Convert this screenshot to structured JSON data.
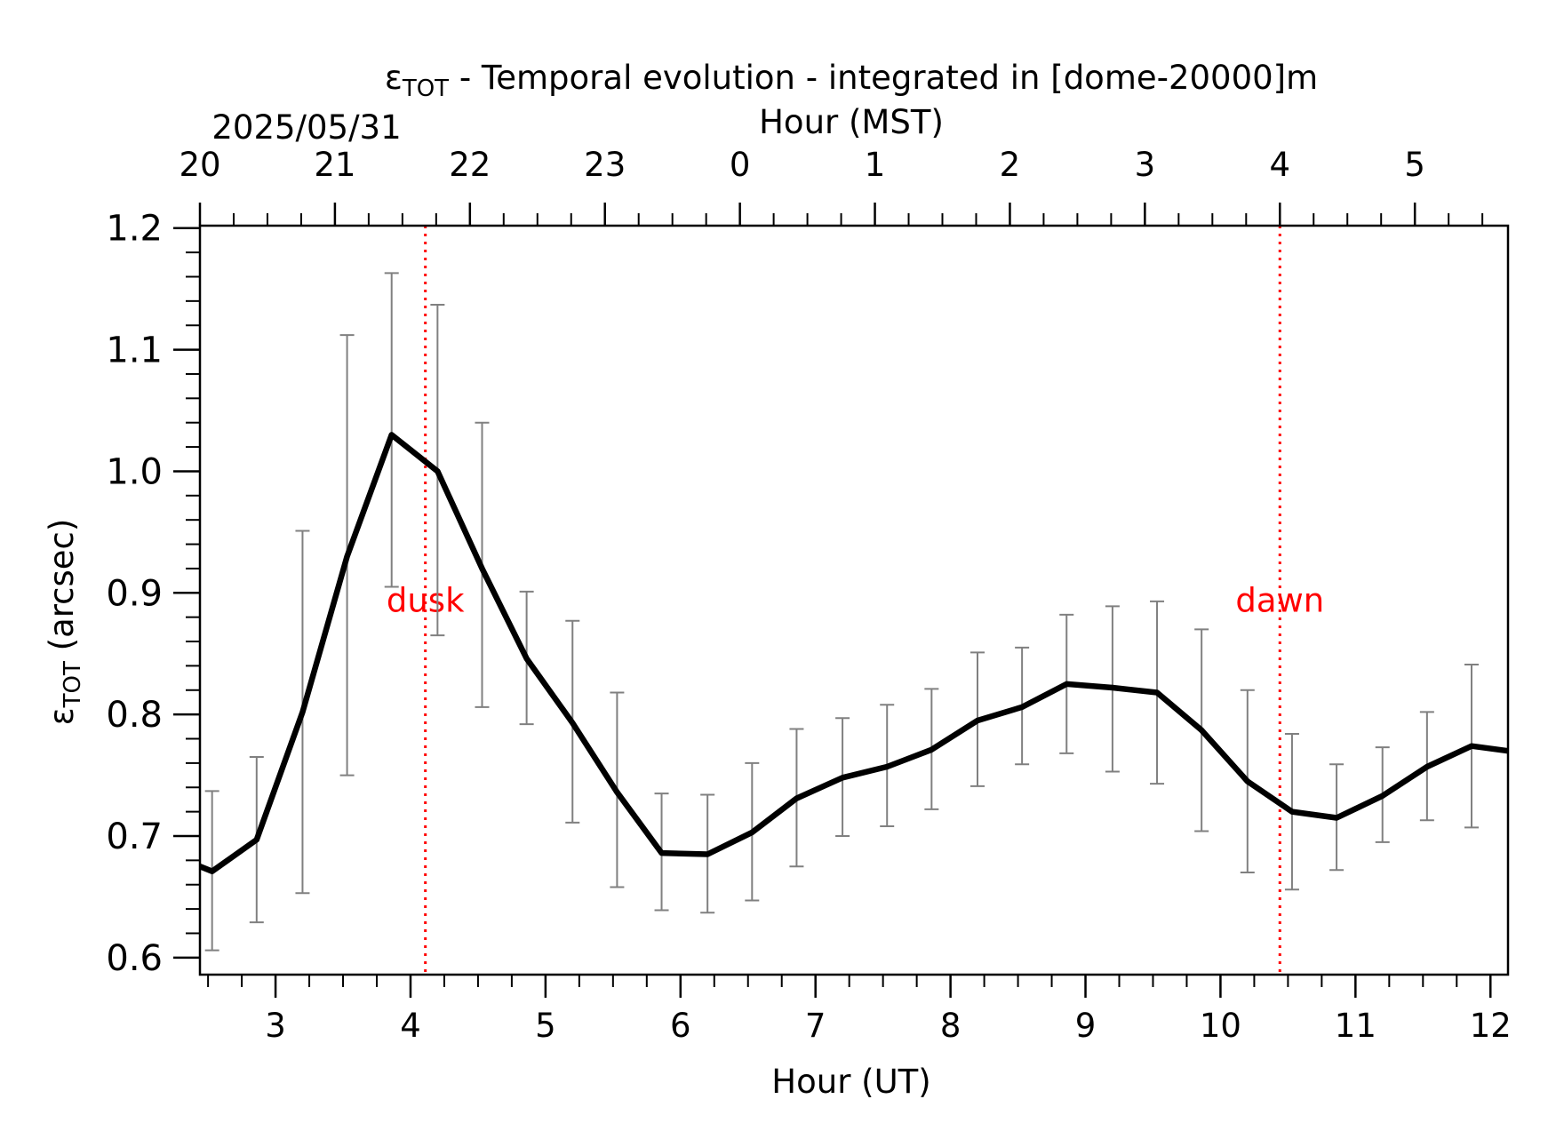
{
  "chart_data": {
    "type": "line",
    "title_main": "ε",
    "title_sub": "TOT",
    "title_rest": " - Temporal evolution - integrated in [dome-20000]m",
    "date_label": "2025/05/31",
    "xlabel": "Hour (UT)",
    "x2label": "Hour (MST)",
    "ylabel_main": "ε",
    "ylabel_sub": "TOT",
    "ylabel_rest": " (arcsec)",
    "xlim": [
      2.44,
      12.13
    ],
    "ylim": [
      0.586,
      1.202
    ],
    "x_ticks": [
      3,
      4,
      5,
      6,
      7,
      8,
      9,
      10,
      11,
      12
    ],
    "x_tick_labels": [
      "3",
      "4",
      "5",
      "6",
      "7",
      "8",
      "9",
      "10",
      "11",
      "12"
    ],
    "x2_ticks": [
      2.44,
      3.44,
      4.44,
      5.44,
      6.44,
      7.44,
      8.44,
      9.44,
      10.44,
      11.44
    ],
    "x2_tick_labels": [
      "20",
      "21",
      "22",
      "23",
      "0",
      "1",
      "2",
      "3",
      "4",
      "5"
    ],
    "y_ticks": [
      0.6,
      0.7,
      0.8,
      0.9,
      1.0,
      1.1,
      1.2
    ],
    "y_tick_labels": [
      "0.6",
      "0.7",
      "0.8",
      "0.9",
      "1.0",
      "1.1",
      "1.2"
    ],
    "grid": false,
    "line_color": "#000000",
    "errorbar_color": "#808080",
    "marker_color": "#ff0000",
    "series": [
      {
        "x": [
          2.44,
          2.53,
          2.86,
          3.2,
          3.53,
          3.86,
          4.2,
          4.53,
          4.86,
          5.2,
          5.53,
          5.86,
          6.2,
          6.53,
          6.86,
          7.2,
          7.53,
          7.86,
          8.2,
          8.53,
          8.86,
          9.2,
          9.53,
          9.86,
          10.2,
          10.53,
          10.86,
          11.2,
          11.53,
          11.86,
          12.13
        ],
        "y": [
          0.675,
          0.671,
          0.697,
          0.802,
          0.93,
          1.03,
          1.0,
          0.92,
          0.846,
          0.793,
          0.736,
          0.686,
          0.685,
          0.703,
          0.731,
          0.748,
          0.757,
          0.771,
          0.795,
          0.806,
          0.825,
          0.822,
          0.818,
          0.787,
          0.745,
          0.72,
          0.715,
          0.733,
          0.757,
          0.774,
          0.77
        ]
      }
    ],
    "errorbars": {
      "x": [
        2.53,
        2.86,
        3.2,
        3.53,
        3.86,
        4.2,
        4.53,
        4.86,
        5.2,
        5.53,
        5.86,
        6.2,
        6.53,
        6.86,
        7.2,
        7.53,
        7.86,
        8.2,
        8.53,
        8.86,
        9.2,
        9.53,
        9.86,
        10.2,
        10.53,
        10.86,
        11.2,
        11.53,
        11.86
      ],
      "low": [
        0.606,
        0.629,
        0.653,
        0.75,
        0.905,
        0.865,
        0.806,
        0.792,
        0.711,
        0.658,
        0.639,
        0.637,
        0.647,
        0.675,
        0.7,
        0.708,
        0.722,
        0.741,
        0.759,
        0.768,
        0.753,
        0.743,
        0.704,
        0.67,
        0.656,
        0.672,
        0.695,
        0.713,
        0.707
      ],
      "high": [
        0.737,
        0.765,
        0.951,
        1.112,
        1.163,
        1.137,
        1.04,
        0.901,
        0.877,
        0.818,
        0.735,
        0.734,
        0.76,
        0.788,
        0.797,
        0.808,
        0.821,
        0.851,
        0.855,
        0.882,
        0.889,
        0.893,
        0.87,
        0.82,
        0.784,
        0.759,
        0.773,
        0.802,
        0.841
      ]
    },
    "markers": [
      {
        "label": "dusk",
        "x": 4.11
      },
      {
        "label": "dawn",
        "x": 10.44
      }
    ]
  }
}
